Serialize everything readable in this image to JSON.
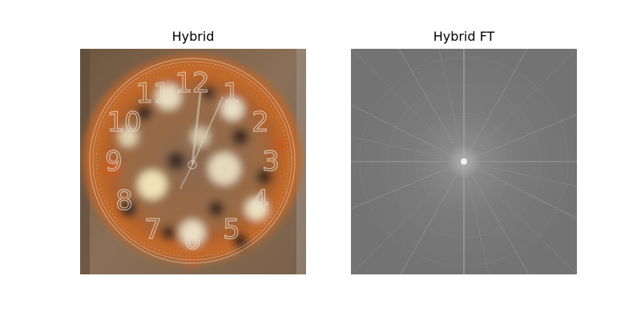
{
  "panels": [
    {
      "title": "Hybrid"
    },
    {
      "title": "Hybrid FT"
    }
  ],
  "clock_numerals": [
    "12",
    "1",
    "2",
    "3",
    "4",
    "5",
    "6",
    "7",
    "8",
    "9",
    "10",
    "11"
  ],
  "colors": {
    "box_brown": "#7a6048",
    "pizza_orange": "#c0682a",
    "cheese": "#e8dcc0",
    "spectrum_gray": "#7b7b7b"
  }
}
